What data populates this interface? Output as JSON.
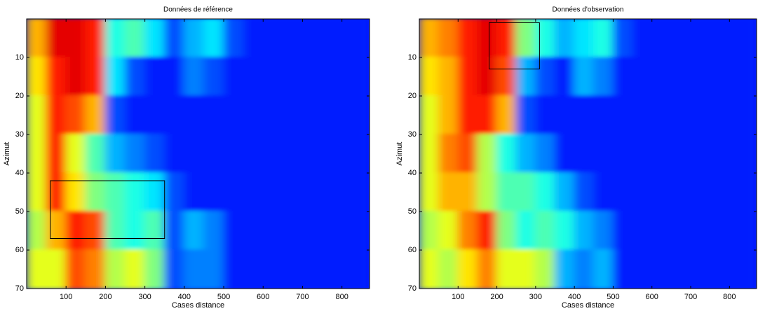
{
  "chart_data": [
    {
      "type": "heatmap",
      "title": "Données de référence",
      "xlabel": "Cases distance",
      "ylabel": "Azimut",
      "colormap": "jet",
      "y_reversed": true,
      "xlim": [
        0,
        870
      ],
      "ylim": [
        0,
        70
      ],
      "xticks": [
        100,
        200,
        300,
        400,
        500,
        600,
        700,
        800
      ],
      "yticks": [
        10,
        20,
        30,
        40,
        50,
        60,
        70
      ],
      "x_edges": [
        0,
        50,
        100,
        150,
        200,
        250,
        300,
        350,
        400,
        450,
        500,
        550,
        600,
        650,
        700,
        750,
        800,
        850,
        870
      ],
      "y_edges": [
        0,
        10,
        20,
        30,
        40,
        50,
        60,
        70
      ],
      "values": [
        [
          0.7,
          0.9,
          0.9,
          0.85,
          0.4,
          0.45,
          0.35,
          0.2,
          0.3,
          0.35,
          0.2,
          0.15,
          0.15,
          0.15,
          0.15,
          0.15,
          0.15,
          0.15
        ],
        [
          0.65,
          0.85,
          0.9,
          0.85,
          0.35,
          0.2,
          0.15,
          0.15,
          0.25,
          0.2,
          0.15,
          0.15,
          0.15,
          0.15,
          0.15,
          0.15,
          0.15,
          0.15
        ],
        [
          0.6,
          0.85,
          0.8,
          0.7,
          0.2,
          0.15,
          0.15,
          0.15,
          0.15,
          0.15,
          0.15,
          0.15,
          0.15,
          0.15,
          0.15,
          0.15,
          0.15,
          0.15
        ],
        [
          0.6,
          0.85,
          0.6,
          0.45,
          0.3,
          0.25,
          0.2,
          0.15,
          0.15,
          0.15,
          0.15,
          0.15,
          0.15,
          0.15,
          0.15,
          0.15,
          0.15,
          0.15
        ],
        [
          0.6,
          0.85,
          0.65,
          0.5,
          0.45,
          0.4,
          0.35,
          0.2,
          0.15,
          0.15,
          0.15,
          0.15,
          0.15,
          0.15,
          0.15,
          0.15,
          0.15,
          0.15
        ],
        [
          0.55,
          0.7,
          0.85,
          0.8,
          0.45,
          0.4,
          0.45,
          0.2,
          0.3,
          0.25,
          0.15,
          0.15,
          0.15,
          0.15,
          0.15,
          0.15,
          0.15,
          0.15
        ],
        [
          0.6,
          0.6,
          0.8,
          0.75,
          0.55,
          0.6,
          0.5,
          0.2,
          0.25,
          0.25,
          0.15,
          0.15,
          0.15,
          0.15,
          0.15,
          0.15,
          0.15,
          0.15
        ]
      ],
      "boxes": [
        {
          "x": [
            60,
            350
          ],
          "y": [
            42,
            57
          ]
        }
      ]
    },
    {
      "type": "heatmap",
      "title": "Données d'observation",
      "xlabel": "Cases distance",
      "ylabel": "Azimut",
      "colormap": "jet",
      "y_reversed": true,
      "xlim": [
        0,
        870
      ],
      "ylim": [
        0,
        70
      ],
      "xticks": [
        100,
        200,
        300,
        400,
        500,
        600,
        700,
        800
      ],
      "yticks": [
        10,
        20,
        30,
        40,
        50,
        60,
        70
      ],
      "x_edges": [
        0,
        50,
        100,
        150,
        200,
        250,
        300,
        350,
        400,
        450,
        500,
        550,
        600,
        650,
        700,
        750,
        800,
        850,
        870
      ],
      "y_edges": [
        0,
        10,
        20,
        30,
        40,
        50,
        60,
        70
      ],
      "values": [
        [
          0.7,
          0.75,
          0.85,
          0.9,
          0.85,
          0.5,
          0.4,
          0.3,
          0.35,
          0.4,
          0.2,
          0.15,
          0.15,
          0.15,
          0.15,
          0.15,
          0.15,
          0.15
        ],
        [
          0.65,
          0.7,
          0.85,
          0.9,
          0.8,
          0.3,
          0.2,
          0.15,
          0.3,
          0.25,
          0.15,
          0.15,
          0.15,
          0.15,
          0.15,
          0.15,
          0.15,
          0.15
        ],
        [
          0.6,
          0.7,
          0.85,
          0.85,
          0.7,
          0.2,
          0.15,
          0.15,
          0.15,
          0.15,
          0.15,
          0.15,
          0.15,
          0.15,
          0.15,
          0.15,
          0.15,
          0.15
        ],
        [
          0.6,
          0.75,
          0.8,
          0.55,
          0.4,
          0.3,
          0.25,
          0.15,
          0.15,
          0.15,
          0.15,
          0.15,
          0.15,
          0.15,
          0.15,
          0.15,
          0.15,
          0.15
        ],
        [
          0.6,
          0.7,
          0.7,
          0.55,
          0.45,
          0.45,
          0.4,
          0.3,
          0.2,
          0.15,
          0.15,
          0.15,
          0.15,
          0.15,
          0.15,
          0.15,
          0.15,
          0.15
        ],
        [
          0.55,
          0.6,
          0.75,
          0.85,
          0.5,
          0.4,
          0.45,
          0.4,
          0.3,
          0.25,
          0.15,
          0.15,
          0.15,
          0.15,
          0.15,
          0.15,
          0.15,
          0.15
        ],
        [
          0.6,
          0.55,
          0.65,
          0.75,
          0.6,
          0.6,
          0.55,
          0.3,
          0.25,
          0.3,
          0.15,
          0.15,
          0.15,
          0.15,
          0.15,
          0.15,
          0.15,
          0.15
        ]
      ],
      "boxes": [
        {
          "x": [
            180,
            310
          ],
          "y": [
            1,
            13
          ]
        }
      ]
    }
  ]
}
